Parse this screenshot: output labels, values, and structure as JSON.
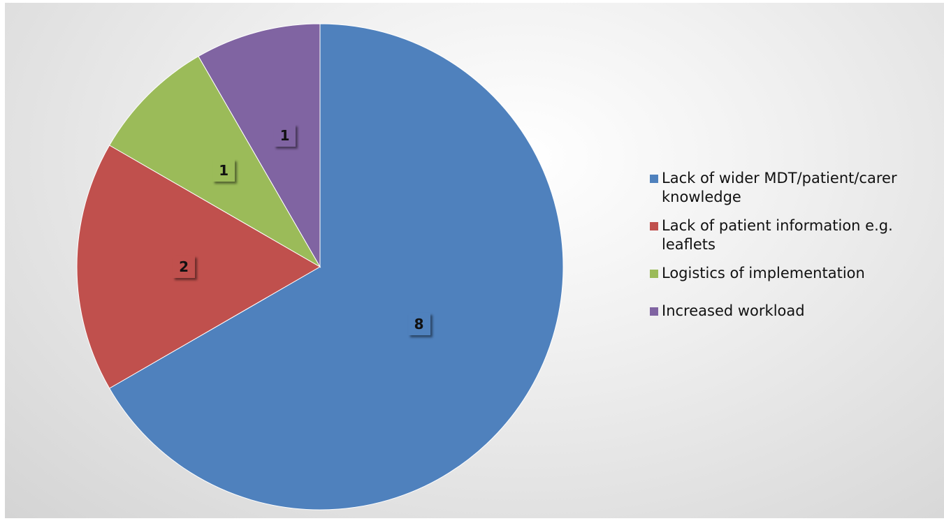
{
  "chart_data": {
    "type": "pie",
    "title": "",
    "legend_position": "right",
    "slices": [
      {
        "label": "Lack of wider MDT/patient/carer knowledge",
        "value": 8,
        "color": "#4F81BD"
      },
      {
        "label": "Lack of patient information e.g. leaflets",
        "value": 2,
        "color": "#C0504D"
      },
      {
        "label": "Logistics of implementation",
        "value": 1,
        "color": "#9BBB59"
      },
      {
        "label": "Increased workload",
        "value": 1,
        "color": "#8064A2"
      }
    ],
    "data_labels": [
      "8",
      "2",
      "1",
      "1"
    ],
    "start_angle_deg": 0,
    "direction": "clockwise"
  },
  "legend": {
    "items": [
      {
        "label": "Lack of wider MDT/patient/carer knowledge",
        "color": "#4F81BD"
      },
      {
        "label": "Lack of patient information e.g. leaflets",
        "color": "#C0504D"
      },
      {
        "label": "Logistics of implementation",
        "color": "#9BBB59"
      },
      {
        "label": "Increased workload",
        "color": "#8064A2"
      }
    ]
  }
}
